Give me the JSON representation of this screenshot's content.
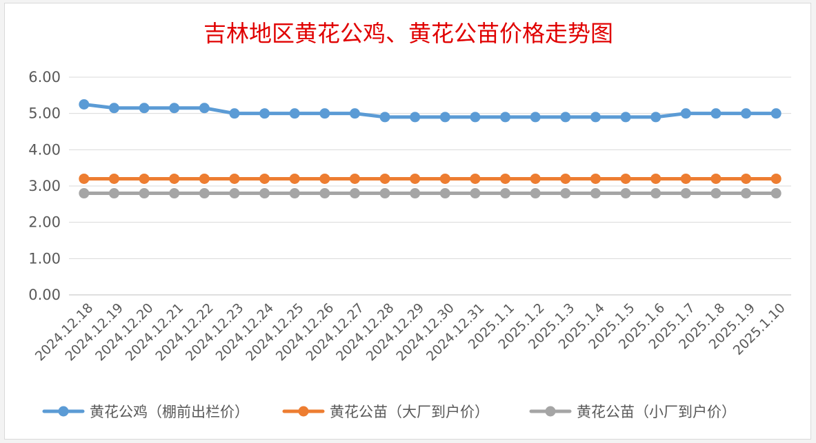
{
  "chart_data": {
    "type": "line",
    "title": "吉林地区黄花公鸡、黄花公苗价格走势图",
    "xlabel": "",
    "ylabel": "",
    "ylim": [
      0,
      6
    ],
    "yticks": [
      "0.00",
      "1.00",
      "2.00",
      "3.00",
      "4.00",
      "5.00",
      "6.00"
    ],
    "grid": true,
    "legend_position": "bottom",
    "categories": [
      "2024.12.18",
      "2024.12.19",
      "2024.12.20",
      "2024.12.21",
      "2024.12.22",
      "2024.12.23",
      "2024.12.24",
      "2024.12.25",
      "2024.12.26",
      "2024.12.27",
      "2024.12.28",
      "2024.12.29",
      "2024.12.30",
      "2024.12.31",
      "2025.1.1",
      "2025.1.2",
      "2025.1.3",
      "2025.1.4",
      "2025.1.5",
      "2025.1.6",
      "2025.1.7",
      "2025.1.8",
      "2025.1.9",
      "2025.1.10"
    ],
    "series": [
      {
        "name": "黄花公鸡（棚前出栏价）",
        "color": "#5b9bd5",
        "values": [
          5.25,
          5.15,
          5.15,
          5.15,
          5.15,
          5.0,
          5.0,
          5.0,
          5.0,
          5.0,
          4.9,
          4.9,
          4.9,
          4.9,
          4.9,
          4.9,
          4.9,
          4.9,
          4.9,
          4.9,
          5.0,
          5.0,
          5.0,
          5.0
        ]
      },
      {
        "name": "黄花公苗（大厂到户价）",
        "color": "#ed7d31",
        "values": [
          3.2,
          3.2,
          3.2,
          3.2,
          3.2,
          3.2,
          3.2,
          3.2,
          3.2,
          3.2,
          3.2,
          3.2,
          3.2,
          3.2,
          3.2,
          3.2,
          3.2,
          3.2,
          3.2,
          3.2,
          3.2,
          3.2,
          3.2,
          3.2
        ]
      },
      {
        "name": "黄花公苗（小厂到户价）",
        "color": "#a5a5a5",
        "values": [
          2.8,
          2.8,
          2.8,
          2.8,
          2.8,
          2.8,
          2.8,
          2.8,
          2.8,
          2.8,
          2.8,
          2.8,
          2.8,
          2.8,
          2.8,
          2.8,
          2.8,
          2.8,
          2.8,
          2.8,
          2.8,
          2.8,
          2.8,
          2.8
        ]
      }
    ]
  }
}
